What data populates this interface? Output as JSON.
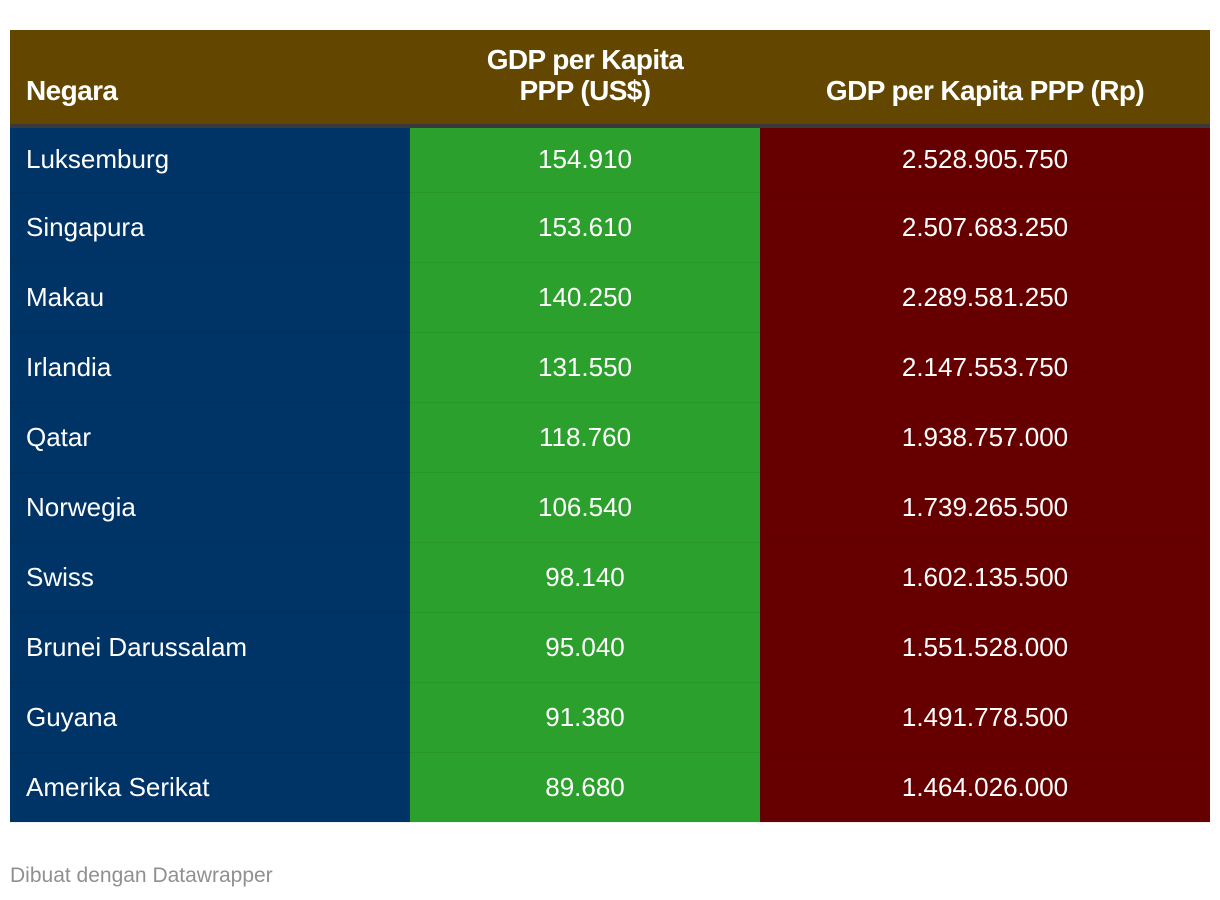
{
  "chart_data": {
    "type": "table",
    "columns": [
      "Negara",
      "GDP per Kapita PPP (US$)",
      "GDP per Kapita PPP (Rp)"
    ],
    "rows": [
      {
        "country": "Luksemburg",
        "usd": "154.910",
        "rp": "2.528.905.750"
      },
      {
        "country": "Singapura",
        "usd": "153.610",
        "rp": "2.507.683.250"
      },
      {
        "country": "Makau",
        "usd": "140.250",
        "rp": "2.289.581.250"
      },
      {
        "country": "Irlandia",
        "usd": "131.550",
        "rp": "2.147.553.750"
      },
      {
        "country": "Qatar",
        "usd": "118.760",
        "rp": "1.938.757.000"
      },
      {
        "country": "Norwegia",
        "usd": "106.540",
        "rp": "1.739.265.500"
      },
      {
        "country": "Swiss",
        "usd": "98.140",
        "rp": "1.602.135.500"
      },
      {
        "country": "Brunei Darussalam",
        "usd": "95.040",
        "rp": "1.551.528.000"
      },
      {
        "country": "Guyana",
        "usd": "91.380",
        "rp": "1.491.778.500"
      },
      {
        "country": "Amerika Serikat",
        "usd": "89.680",
        "rp": "1.464.026.000"
      }
    ],
    "colors": {
      "header": "#634600",
      "country_column": "#003366",
      "usd_column": "#2ca02c",
      "rp_column": "#660000"
    }
  },
  "footer": {
    "credit": "Dibuat dengan Datawrapper"
  }
}
